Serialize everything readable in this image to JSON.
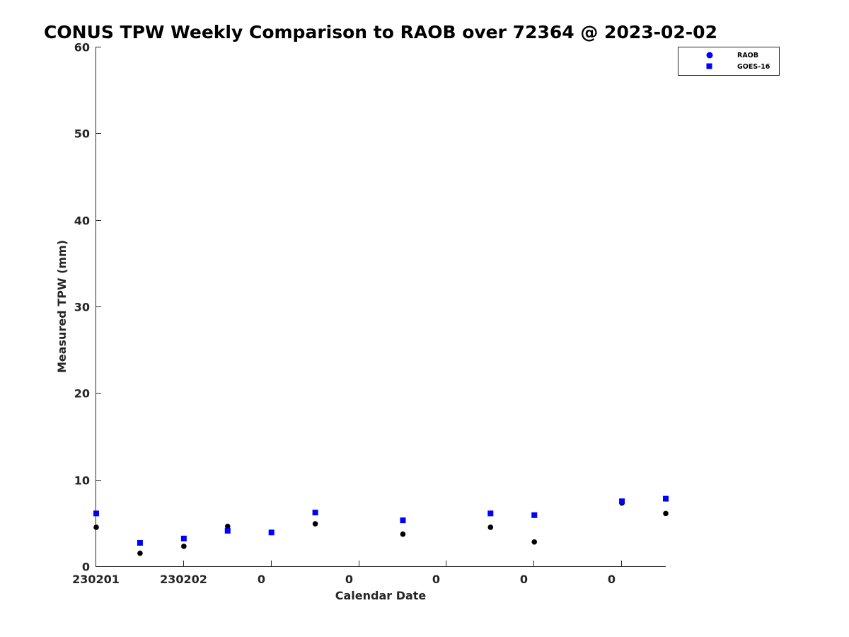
{
  "chart_data": {
    "type": "scatter",
    "title": "CONUS TPW Weekly Comparison to RAOB over 72364 @ 2023-02-02",
    "xlabel": "Calendar Date",
    "ylabel": "Measured TPW (mm)",
    "ylim": [
      0,
      60
    ],
    "yticks": [
      0,
      10,
      20,
      30,
      40,
      50,
      60
    ],
    "xlim": [
      0,
      13
    ],
    "xticks": [
      0,
      2,
      4,
      6,
      8,
      10,
      12
    ],
    "xtick_labels": [
      "230201",
      "230202",
      "0",
      "0",
      "0",
      "0",
      "0"
    ],
    "grid": false,
    "legend_position": "top-right",
    "series": [
      {
        "name": "RAOB",
        "marker": "circle",
        "color": "#000000",
        "x": [
          0,
          1,
          2,
          3,
          4,
          5,
          7,
          9,
          10,
          12,
          13
        ],
        "y": [
          4.5,
          1.5,
          2.3,
          4.6,
          3.9,
          4.9,
          3.7,
          4.5,
          2.8,
          7.3,
          6.1
        ]
      },
      {
        "name": "GOES-16",
        "marker": "square",
        "color": "#0000ff",
        "x": [
          0,
          1,
          2,
          3,
          4,
          5,
          7,
          9,
          10,
          12,
          13
        ],
        "y": [
          6.1,
          2.7,
          3.2,
          4.1,
          3.9,
          6.2,
          5.3,
          6.1,
          5.9,
          7.5,
          7.8
        ]
      }
    ]
  }
}
